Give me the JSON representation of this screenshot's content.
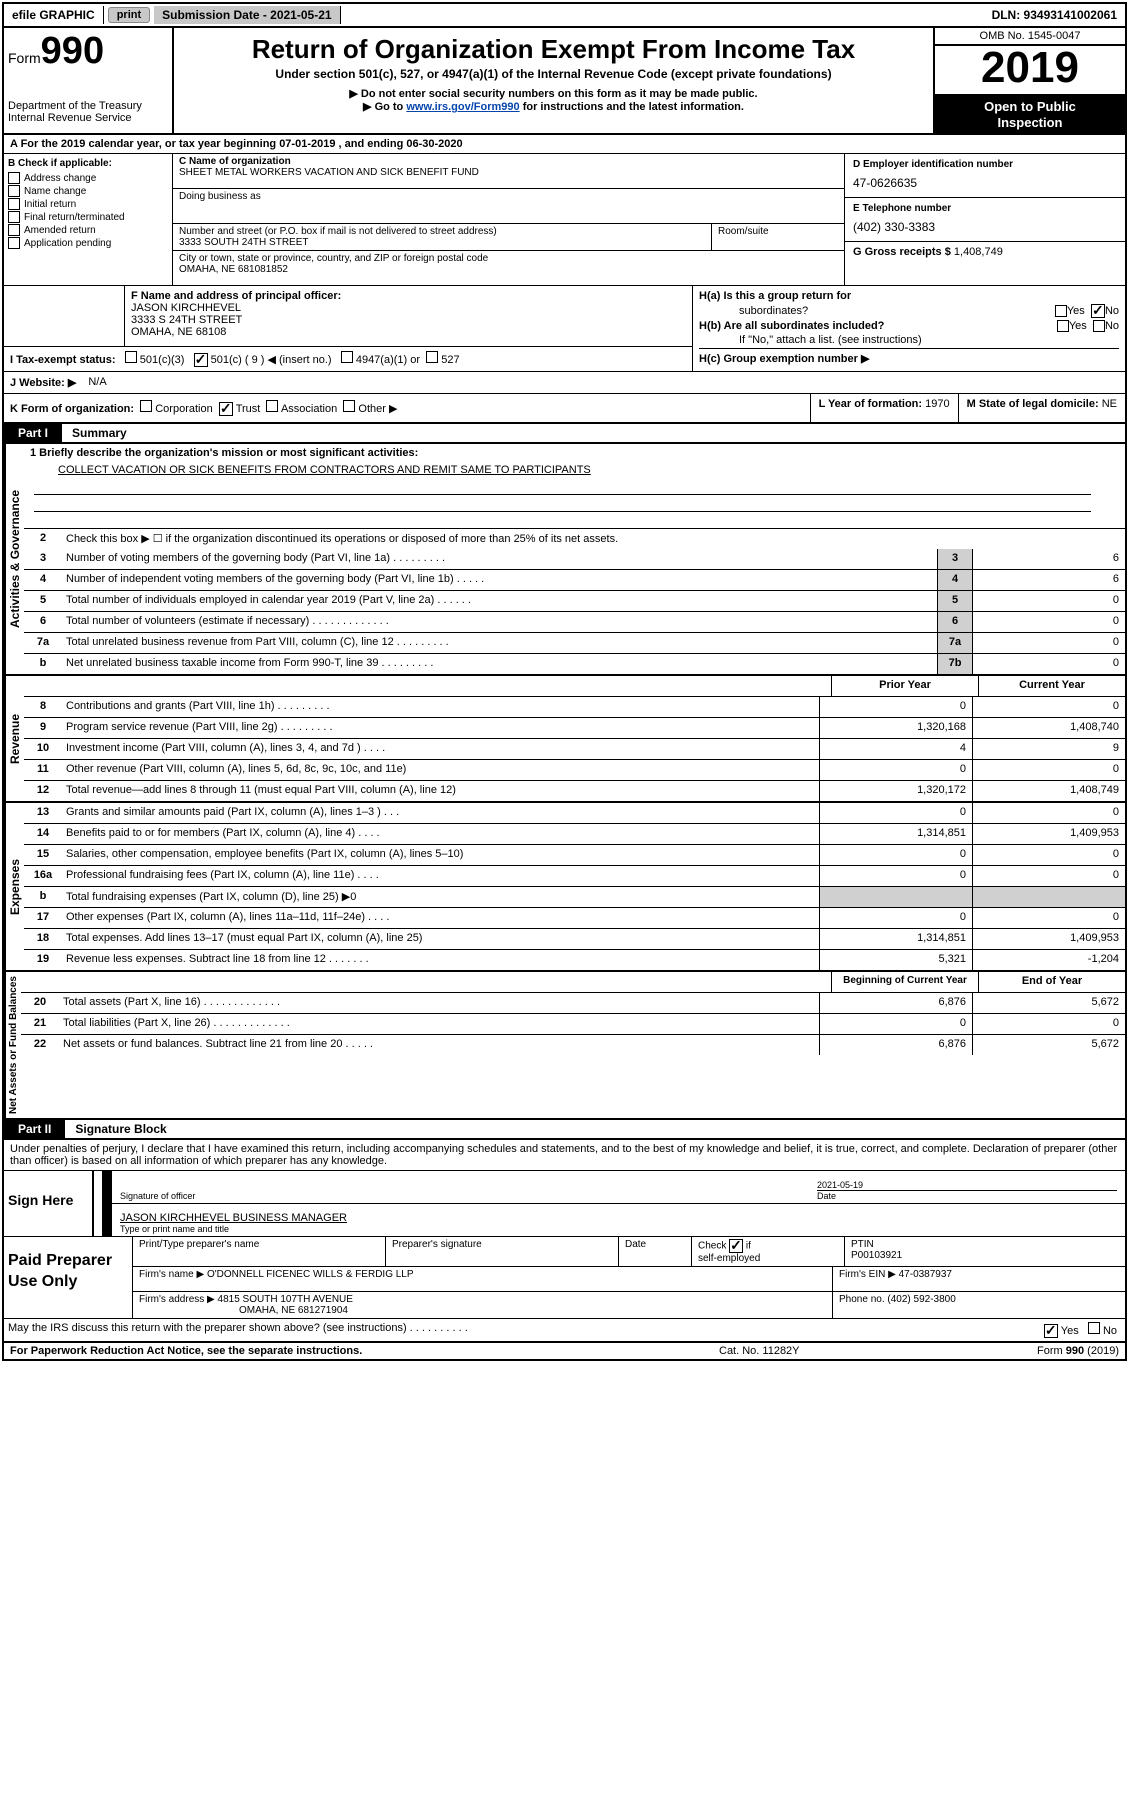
{
  "topbar": {
    "efile": "efile GRAPHIC",
    "print": "print",
    "submission": "Submission Date - 2021-05-21",
    "dln": "DLN: 93493141002061"
  },
  "header": {
    "form_label": "Form",
    "form_num": "990",
    "dept1": "Department of the Treasury",
    "dept2": "Internal Revenue Service",
    "title": "Return of Organization Exempt From Income Tax",
    "sub": "Under section 501(c), 527, or 4947(a)(1) of the Internal Revenue Code (except private foundations)",
    "note1": "▶ Do not enter social security numbers on this form as it may be made public.",
    "note2_pre": "▶ Go to ",
    "note2_link": "www.irs.gov/Form990",
    "note2_post": " for instructions and the latest information.",
    "omb": "OMB No. 1545-0047",
    "year": "2019",
    "inspect1": "Open to Public",
    "inspect2": "Inspection"
  },
  "rowA": "A For the 2019 calendar year, or tax year beginning 07-01-2019    , and ending 06-30-2020",
  "colB": {
    "head": "B Check if applicable:",
    "opts": [
      "Address change",
      "Name change",
      "Initial return",
      "Final return/terminated",
      "Amended return",
      "Application pending"
    ]
  },
  "colC": {
    "name_lbl": "C Name of organization",
    "name": "SHEET METAL WORKERS VACATION AND SICK BENEFIT FUND",
    "dba_lbl": "Doing business as",
    "addr_lbl": "Number and street (or P.O. box if mail is not delivered to street address)",
    "room_lbl": "Room/suite",
    "addr": "3333 SOUTH 24TH STREET",
    "city_lbl": "City or town, state or province, country, and ZIP or foreign postal code",
    "city": "OMAHA, NE  681081852"
  },
  "colD": {
    "lbl": "D Employer identification number",
    "val": "47-0626635"
  },
  "colE": {
    "lbl": "E Telephone number",
    "val": "(402) 330-3383"
  },
  "colG": {
    "lbl": "G Gross receipts $",
    "val": "1,408,749"
  },
  "colF": {
    "lbl": "F Name and address of principal officer:",
    "name": "JASON KIRCHHEVEL",
    "addr": "3333 S 24TH STREET",
    "city": "OMAHA, NE  68108"
  },
  "colH": {
    "ha_lbl": "H(a)  Is this a group return for",
    "ha_sub": "subordinates?",
    "hb_lbl": "H(b)  Are all subordinates included?",
    "hb_note": "If \"No,\" attach a list. (see instructions)",
    "hc_lbl": "H(c)  Group exemption number ▶",
    "yes": "Yes",
    "no": "No"
  },
  "rowI": {
    "lbl": "I    Tax-exempt status:",
    "o1": "501(c)(3)",
    "o2": "501(c) ( 9 ) ◀ (insert no.)",
    "o3": "4947(a)(1) or",
    "o4": "527"
  },
  "rowJ": {
    "lbl": "J    Website: ▶",
    "val": "N/A"
  },
  "rowK": {
    "lbl": "K Form of organization:",
    "o1": "Corporation",
    "o2": "Trust",
    "o3": "Association",
    "o4": "Other ▶",
    "L_lbl": "L Year of formation:",
    "L_val": "1970",
    "M_lbl": "M State of legal domicile:",
    "M_val": "NE"
  },
  "part1": {
    "tab": "Part I",
    "title": "Summary"
  },
  "summary": {
    "l1_lbl": "1  Briefly describe the organization's mission or most significant activities:",
    "l1_val": "COLLECT VACATION OR SICK BENEFITS FROM CONTRACTORS AND REMIT SAME TO PARTICIPANTS",
    "l2": "Check this box ▶ ☐  if the organization discontinued its operations or disposed of more than 25% of its net assets.",
    "lines_gov": [
      {
        "n": "3",
        "d": "Number of voting members of the governing body (Part VI, line 1a)   .    .    .    .    .    .    .    .    .",
        "b": "3",
        "v": "6"
      },
      {
        "n": "4",
        "d": "Number of independent voting members of the governing body (Part VI, line 1b)   .    .    .    .    .",
        "b": "4",
        "v": "6"
      },
      {
        "n": "5",
        "d": "Total number of individuals employed in calendar year 2019 (Part V, line 2a)   .    .    .    .    .    .",
        "b": "5",
        "v": "0"
      },
      {
        "n": "6",
        "d": "Total number of volunteers (estimate if necessary)   .    .    .    .    .    .    .    .    .    .    .    .    .",
        "b": "6",
        "v": "0"
      },
      {
        "n": "7a",
        "d": "Total unrelated business revenue from Part VIII, column (C), line 12   .    .    .    .    .    .    .    .    .",
        "b": "7a",
        "v": "0"
      },
      {
        "n": "b",
        "d": "Net unrelated business taxable income from Form 990-T, line 39   .    .    .    .    .    .    .    .    .",
        "b": "7b",
        "v": "0"
      }
    ],
    "prior_hdr": "Prior Year",
    "curr_hdr": "Current Year",
    "rev": [
      {
        "n": "8",
        "d": "Contributions and grants (Part VIII, line 1h)   .    .    .    .    .    .    .    .    .",
        "p": "0",
        "c": "0"
      },
      {
        "n": "9",
        "d": "Program service revenue (Part VIII, line 2g)   .    .    .    .    .    .    .    .    .",
        "p": "1,320,168",
        "c": "1,408,740"
      },
      {
        "n": "10",
        "d": "Investment income (Part VIII, column (A), lines 3, 4, and 7d )   .    .    .    .",
        "p": "4",
        "c": "9"
      },
      {
        "n": "11",
        "d": "Other revenue (Part VIII, column (A), lines 5, 6d, 8c, 9c, 10c, and 11e)",
        "p": "0",
        "c": "0"
      },
      {
        "n": "12",
        "d": "Total revenue—add lines 8 through 11 (must equal Part VIII, column (A), line 12)",
        "p": "1,320,172",
        "c": "1,408,749"
      }
    ],
    "exp": [
      {
        "n": "13",
        "d": "Grants and similar amounts paid (Part IX, column (A), lines 1–3 )   .    .    .",
        "p": "0",
        "c": "0"
      },
      {
        "n": "14",
        "d": "Benefits paid to or for members (Part IX, column (A), line 4)   .    .    .    .",
        "p": "1,314,851",
        "c": "1,409,953"
      },
      {
        "n": "15",
        "d": "Salaries, other compensation, employee benefits (Part IX, column (A), lines 5–10)",
        "p": "0",
        "c": "0"
      },
      {
        "n": "16a",
        "d": "Professional fundraising fees (Part IX, column (A), line 11e)   .    .    .    .",
        "p": "0",
        "c": "0"
      },
      {
        "n": "b",
        "d": "Total fundraising expenses (Part IX, column (D), line 25) ▶0",
        "p": "",
        "c": "",
        "shaded": true
      },
      {
        "n": "17",
        "d": "Other expenses (Part IX, column (A), lines 11a–11d, 11f–24e)   .    .    .    .",
        "p": "0",
        "c": "0"
      },
      {
        "n": "18",
        "d": "Total expenses. Add lines 13–17 (must equal Part IX, column (A), line 25)",
        "p": "1,314,851",
        "c": "1,409,953"
      },
      {
        "n": "19",
        "d": "Revenue less expenses. Subtract line 18 from line 12   .    .    .    .    .    .    .",
        "p": "5,321",
        "c": "-1,204"
      }
    ],
    "bal_hdr_p": "Beginning of Current Year",
    "bal_hdr_c": "End of Year",
    "bal": [
      {
        "n": "20",
        "d": "Total assets (Part X, line 16)   .    .    .    .    .    .    .    .    .    .    .    .    .",
        "p": "6,876",
        "c": "5,672"
      },
      {
        "n": "21",
        "d": "Total liabilities (Part X, line 26)   .    .    .    .    .    .    .    .    .    .    .    .    .",
        "p": "0",
        "c": "0"
      },
      {
        "n": "22",
        "d": "Net assets or fund balances. Subtract line 21 from line 20   .    .    .    .    .",
        "p": "6,876",
        "c": "5,672"
      }
    ],
    "vert_gov": "Activities & Governance",
    "vert_rev": "Revenue",
    "vert_exp": "Expenses",
    "vert_bal": "Net Assets or Fund Balances"
  },
  "part2": {
    "tab": "Part II",
    "title": "Signature Block"
  },
  "sig": {
    "perjury": "Under penalties of perjury, I declare that I have examined this return, including accompanying schedules and statements, and to the best of my knowledge and belief, it is true, correct, and complete. Declaration of preparer (other than officer) is based on all information of which preparer has any knowledge.",
    "sign_here": "Sign Here",
    "sig_lbl": "Signature of officer",
    "date_val": "2021-05-19",
    "date_lbl": "Date",
    "name": "JASON KIRCHHEVEL  BUSINESS MANAGER",
    "name_lbl": "Type or print name and title"
  },
  "prep": {
    "title": "Paid Preparer Use Only",
    "c1": "Print/Type preparer's name",
    "c2": "Preparer's signature",
    "c3": "Date",
    "c4_lbl": "Check",
    "c4_sub": "self-employed",
    "c4_if": "if",
    "c5_lbl": "PTIN",
    "c5_val": "P00103921",
    "firm_lbl": "Firm's name    ▶",
    "firm_val": "O'DONNELL FICENEC WILLS & FERDIG LLP",
    "ein_lbl": "Firm's EIN ▶",
    "ein_val": "47-0387937",
    "addr_lbl": "Firm's address ▶",
    "addr_val": "4815 SOUTH 107TH AVENUE",
    "addr_val2": "OMAHA, NE  681271904",
    "phone_lbl": "Phone no.",
    "phone_val": "(402) 592-3800"
  },
  "discuss": {
    "q": "May the IRS discuss this return with the preparer shown above? (see instructions)   .    .    .    .    .    .    .    .    .    .",
    "yes": "Yes",
    "no": "No"
  },
  "footer": {
    "left": "For Paperwork Reduction Act Notice, see the separate instructions.",
    "mid": "Cat. No. 11282Y",
    "right": "Form 990 (2019)"
  }
}
